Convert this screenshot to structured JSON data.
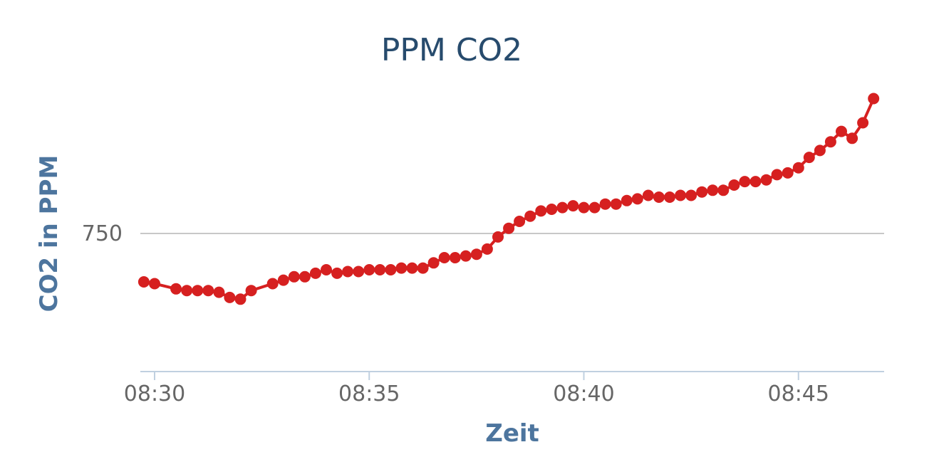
{
  "chart_data": {
    "type": "line",
    "title": "PPM CO2",
    "xlabel": "Zeit",
    "ylabel": "CO2 in PPM",
    "x_ticks": [
      "08:30",
      "08:35",
      "08:40",
      "08:45"
    ],
    "y_ticks": [
      750
    ],
    "grid": true,
    "legend": "none",
    "series": [
      {
        "color": "#d62020",
        "x": [
          "08:29:45",
          "08:30:00",
          "08:30:30",
          "08:30:45",
          "08:31:00",
          "08:31:15",
          "08:31:30",
          "08:31:45",
          "08:32:00",
          "08:32:15",
          "08:32:45",
          "08:33:00",
          "08:33:15",
          "08:33:30",
          "08:33:45",
          "08:34:00",
          "08:34:15",
          "08:34:30",
          "08:34:45",
          "08:35:00",
          "08:35:15",
          "08:35:30",
          "08:35:45",
          "08:36:00",
          "08:36:15",
          "08:36:30",
          "08:36:45",
          "08:37:00",
          "08:37:15",
          "08:37:30",
          "08:37:45",
          "08:38:00",
          "08:38:15",
          "08:38:30",
          "08:38:45",
          "08:39:00",
          "08:39:15",
          "08:39:30",
          "08:39:45",
          "08:40:00",
          "08:40:15",
          "08:40:30",
          "08:40:45",
          "08:41:00",
          "08:41:15",
          "08:41:30",
          "08:41:45",
          "08:42:00",
          "08:42:15",
          "08:42:30",
          "08:42:45",
          "08:43:00",
          "08:43:15",
          "08:43:30",
          "08:43:45",
          "08:44:00",
          "08:44:15",
          "08:44:30",
          "08:44:45",
          "08:45:00",
          "08:45:15",
          "08:45:30",
          "08:45:45",
          "08:46:00",
          "08:46:15",
          "08:46:30",
          "08:46:45"
        ],
        "values": [
          722,
          721,
          718,
          717,
          717,
          717,
          716,
          713,
          712,
          717,
          721,
          723,
          725,
          725,
          727,
          729,
          727,
          728,
          728,
          729,
          729,
          729,
          730,
          730,
          730,
          733,
          736,
          736,
          737,
          738,
          741,
          748,
          753,
          757,
          760,
          763,
          764,
          765,
          766,
          765,
          765,
          767,
          767,
          769,
          770,
          772,
          771,
          771,
          772,
          772,
          774,
          775,
          775,
          778,
          780,
          780,
          781,
          784,
          785,
          788,
          794,
          798,
          803,
          809,
          805,
          814,
          828
        ]
      }
    ],
    "ylim": [
      692,
      825
    ]
  }
}
